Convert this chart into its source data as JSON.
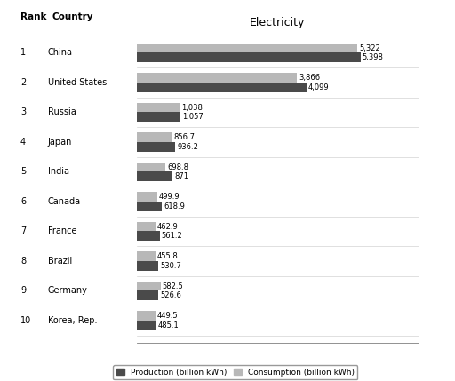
{
  "countries": [
    "China",
    "United States",
    "Russia",
    "Japan",
    "India",
    "Canada",
    "France",
    "Brazil",
    "Germany",
    "Korea, Rep."
  ],
  "ranks": [
    "1",
    "2",
    "3",
    "4",
    "5",
    "6",
    "7",
    "8",
    "9",
    "10"
  ],
  "production": [
    5398,
    4099,
    1057,
    936.2,
    871,
    618.9,
    561.2,
    530.7,
    526.6,
    485.1
  ],
  "consumption": [
    5322,
    3866,
    1038,
    856.7,
    698.8,
    499.9,
    462.9,
    455.8,
    582.5,
    449.5
  ],
  "prod_labels": [
    "5,398",
    "4,099",
    "1,057",
    "936.2",
    "871",
    "618.9",
    "561.2",
    "530.7",
    "526.6",
    "485.1"
  ],
  "cons_labels": [
    "5,322",
    "3,866",
    "1,038",
    "856.7",
    "698.8",
    "499.9",
    "462.9",
    "455.8",
    "582.5",
    "449.5"
  ],
  "prod_color": "#4a4a4a",
  "cons_color": "#b8b8b8",
  "title": "Electricity",
  "legend_prod": "Production (billion kWh)",
  "legend_cons": "Consumption (billion kWh)",
  "background_color": "#ffffff",
  "bar_height": 0.32,
  "xlim": [
    0,
    6800
  ],
  "title_fontsize": 9,
  "value_fontsize": 6,
  "rank_fontsize": 7,
  "country_fontsize": 7,
  "header_fontsize": 7.5,
  "legend_fontsize": 6.5
}
